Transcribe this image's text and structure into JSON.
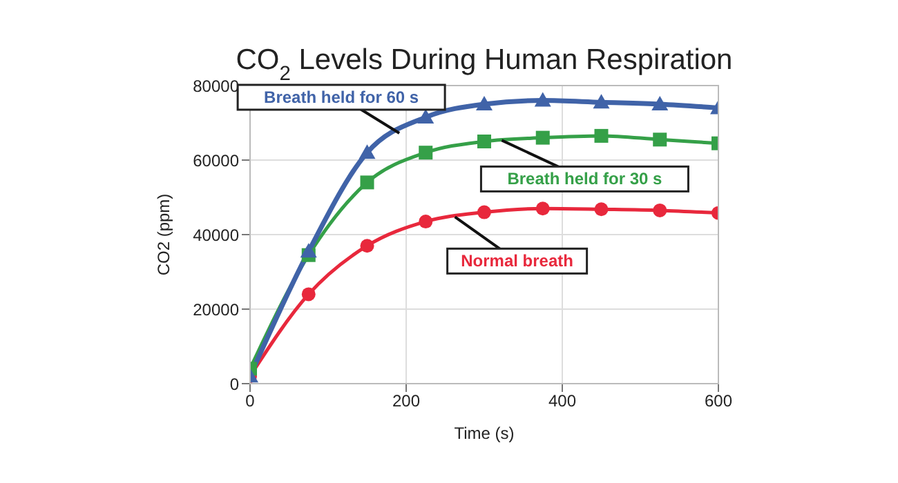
{
  "chart_data": {
    "type": "line",
    "title": "CO$_{2}$ Levels During Human Respiration",
    "xlabel": "Time (s)",
    "ylabel": "CO2 (ppm)",
    "x": [
      0,
      75,
      150,
      225,
      300,
      375,
      450,
      525,
      600
    ],
    "series": [
      {
        "name": "Breath held for 60 s",
        "color": "#4063a8",
        "marker": "triangle",
        "values": [
          2000,
          35500,
          62000,
          71500,
          75000,
          76000,
          75500,
          75000,
          74000
        ]
      },
      {
        "name": "Breath held for 30 s",
        "color": "#35a048",
        "marker": "square",
        "values": [
          4000,
          34500,
          54000,
          62000,
          65000,
          66000,
          66500,
          65500,
          64500
        ]
      },
      {
        "name": "Normal breath",
        "color": "#e8283c",
        "marker": "circle",
        "values": [
          2000,
          24000,
          37000,
          43500,
          46000,
          47000,
          46800,
          46500,
          45800
        ]
      }
    ],
    "xlim": [
      0,
      600
    ],
    "xticks": [
      0,
      200,
      400,
      600
    ],
    "ylim": [
      0,
      80000
    ],
    "yticks": [
      0,
      20000,
      40000,
      60000,
      80000
    ],
    "grid": true,
    "legend": false
  }
}
